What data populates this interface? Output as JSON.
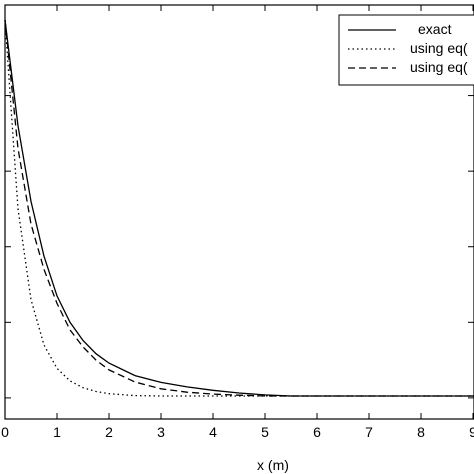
{
  "chart_data": {
    "type": "line",
    "xlabel": "x (m)",
    "ylabel": "",
    "xlim": [
      0,
      9.2
    ],
    "ylim": [
      0,
      1.0
    ],
    "xticks": [
      "0",
      "1",
      "2",
      "3",
      "4",
      "5",
      "6",
      "7",
      "8",
      "9"
    ],
    "grid": false,
    "legend_position": "top-right",
    "series": [
      {
        "name": "exact",
        "style": "solid",
        "x": [
          0,
          0.25,
          0.5,
          0.75,
          1.0,
          1.25,
          1.5,
          1.75,
          2.0,
          2.5,
          3.0,
          3.5,
          4.0,
          4.5,
          5.0,
          5.5,
          6.0,
          7.0,
          8.0,
          9.0,
          9.2
        ],
        "y": [
          1.0,
          0.72,
          0.52,
          0.375,
          0.27,
          0.2,
          0.152,
          0.117,
          0.092,
          0.059,
          0.041,
          0.029,
          0.02,
          0.013,
          0.008,
          0.005,
          0.005,
          0.005,
          0.005,
          0.005,
          0.005
        ]
      },
      {
        "name": "using eq(",
        "style": "dotted",
        "x": [
          0,
          0.25,
          0.5,
          0.75,
          1.0,
          1.25,
          1.5,
          1.75,
          2.0,
          2.5,
          3.0,
          3.5,
          4.0,
          5.0,
          6.0,
          7.0,
          8.0,
          9.0,
          9.2
        ],
        "y": [
          1.0,
          0.5,
          0.26,
          0.14,
          0.078,
          0.045,
          0.027,
          0.017,
          0.011,
          0.006,
          0.005,
          0.005,
          0.005,
          0.005,
          0.005,
          0.005,
          0.005,
          0.005,
          0.005
        ]
      },
      {
        "name": "using eq(",
        "style": "dashed",
        "x": [
          0,
          0.25,
          0.5,
          0.75,
          1.0,
          1.25,
          1.5,
          1.75,
          2.0,
          2.5,
          3.0,
          3.5,
          4.0,
          4.5,
          5.0,
          6.0,
          7.0,
          8.0,
          9.0,
          9.2
        ],
        "y": [
          1.0,
          0.66,
          0.46,
          0.34,
          0.25,
          0.18,
          0.135,
          0.1,
          0.074,
          0.042,
          0.024,
          0.015,
          0.01,
          0.007,
          0.005,
          0.005,
          0.005,
          0.005,
          0.005,
          0.005
        ]
      }
    ]
  }
}
